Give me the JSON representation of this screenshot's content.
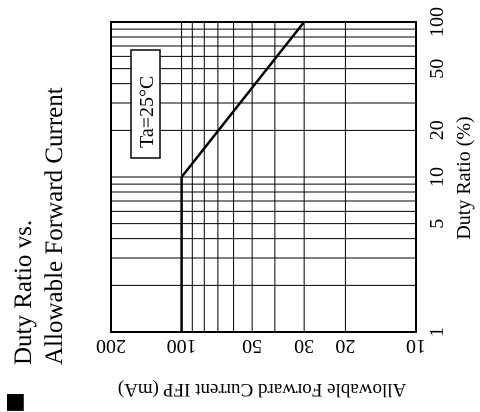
{
  "chart_data": {
    "type": "line",
    "title_line1": "Duty Ratio vs.",
    "title_line2": "Allowable Forward Current",
    "bullet": "■",
    "duty_axis": {
      "label": "Duty Ratio (%)",
      "scale": "log",
      "range": [
        1,
        100
      ],
      "ticks": [
        1,
        5,
        10,
        20,
        50,
        100
      ],
      "tick_labels": [
        "1",
        "5",
        "10",
        "20",
        "50",
        "100"
      ]
    },
    "current_axis": {
      "label": "Allowable Forward Current IFP (mA)",
      "scale": "log",
      "range": [
        10,
        200
      ],
      "ticks": [
        200,
        100,
        50,
        30,
        20,
        10
      ],
      "tick_labels": [
        "200",
        "100",
        "50",
        "30",
        "20",
        "10"
      ]
    },
    "annotation": "Ta=25°C",
    "grid": true,
    "series": [
      {
        "points": [
          {
            "duty": 1,
            "current": 100
          },
          {
            "duty": 10,
            "current": 100
          },
          {
            "duty": 100,
            "current": 30
          }
        ]
      }
    ]
  }
}
